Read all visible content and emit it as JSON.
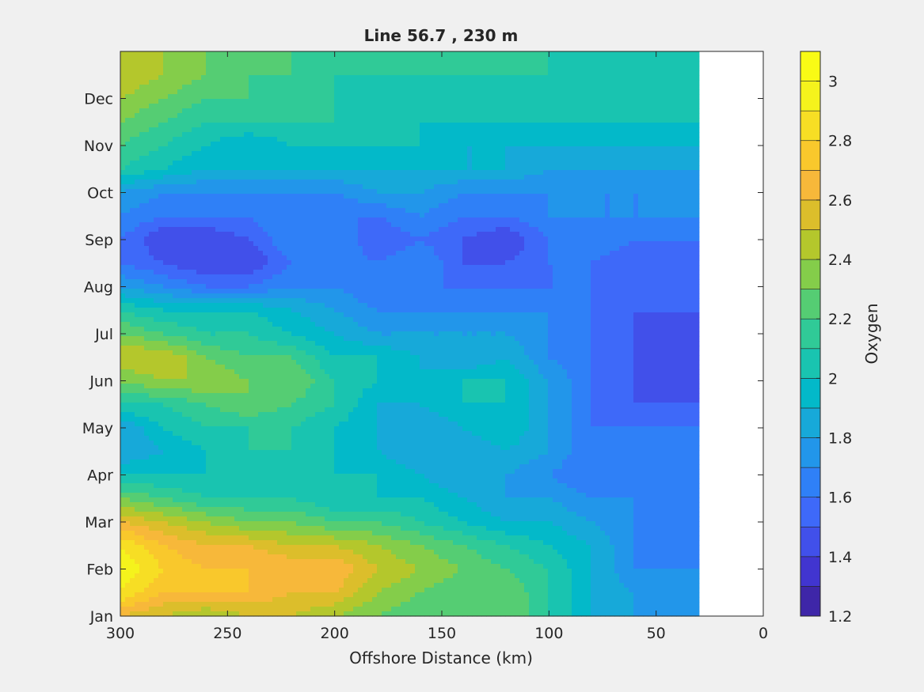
{
  "chart_data": {
    "type": "heatmap",
    "subtype": "filled-contour",
    "title": "Line 56.7 , 230 m",
    "xlabel": "Offshore Distance (km)",
    "ylabel": "",
    "colorbar_label": "Oxygen",
    "x_reversed": true,
    "xlim": [
      300,
      0
    ],
    "xticks": [
      300,
      250,
      200,
      150,
      100,
      50,
      0
    ],
    "ylim": [
      0,
      12
    ],
    "yticks": [
      0,
      1,
      2,
      3,
      4,
      5,
      6,
      7,
      8,
      9,
      10,
      11
    ],
    "ytick_labels": [
      "Jan",
      "Feb",
      "Mar",
      "Apr",
      "May",
      "Jun",
      "Jul",
      "Aug",
      "Sep",
      "Oct",
      "Nov",
      "Dec"
    ],
    "clim": [
      1.2,
      3.1
    ],
    "colorbar_ticks": [
      1.2,
      1.4,
      1.6,
      1.8,
      2,
      2.2,
      2.4,
      2.6,
      2.8,
      3
    ],
    "contour_levels": [
      1.2,
      1.3,
      1.4,
      1.5,
      1.6,
      1.7,
      1.8,
      1.9,
      2.0,
      2.1,
      2.2,
      2.3,
      2.4,
      2.5,
      2.6,
      2.7,
      2.8,
      2.9,
      3.0,
      3.1
    ],
    "level_colors": [
      "#3e26a8",
      "#4135d0",
      "#4150ea",
      "#3e69f9",
      "#2f80f7",
      "#2296ea",
      "#17a9d9",
      "#03b9c9",
      "#19c4b0",
      "#30ca97",
      "#55cd73",
      "#84cd4a",
      "#b4c72c",
      "#dcbe2b",
      "#f7b83a",
      "#f9c82c",
      "#f7de24",
      "#f5f31c",
      "#f9fb15"
    ],
    "grid": false,
    "data_x_range": [
      300,
      30
    ],
    "grid_x": [
      300,
      280,
      260,
      240,
      220,
      200,
      180,
      160,
      140,
      120,
      100,
      80,
      60,
      40,
      30
    ],
    "grid_y": [
      0,
      0.5,
      1,
      1.5,
      2,
      2.5,
      3,
      3.5,
      4,
      4.5,
      5,
      5.5,
      6,
      6.5,
      7,
      7.5,
      8,
      8.5,
      9,
      9.5,
      10,
      10.5,
      11,
      11.5,
      12
    ],
    "values": [
      [
        2.6,
        2.5,
        2.4,
        2.5,
        2.5,
        2.4,
        2.3,
        2.2,
        2.3,
        2.3,
        2.1,
        1.9,
        1.8,
        1.8,
        1.8
      ],
      [
        2.9,
        2.7,
        2.7,
        2.7,
        2.6,
        2.6,
        2.4,
        2.3,
        2.2,
        2.3,
        2.1,
        1.9,
        1.8,
        1.7,
        1.8
      ],
      [
        3.0,
        2.8,
        2.7,
        2.7,
        2.7,
        2.7,
        2.5,
        2.4,
        2.3,
        2.2,
        2.1,
        1.9,
        1.7,
        1.7,
        1.7
      ],
      [
        2.9,
        2.7,
        2.6,
        2.6,
        2.5,
        2.5,
        2.4,
        2.3,
        2.2,
        2.1,
        2.0,
        1.9,
        1.7,
        1.6,
        1.6
      ],
      [
        2.6,
        2.5,
        2.4,
        2.3,
        2.3,
        2.2,
        2.2,
        2.1,
        2.0,
        1.9,
        1.9,
        1.8,
        1.7,
        1.6,
        1.6
      ],
      [
        2.3,
        2.2,
        2.1,
        2.1,
        2.1,
        2.0,
        2.0,
        2.0,
        1.9,
        1.8,
        1.8,
        1.7,
        1.7,
        1.6,
        1.6
      ],
      [
        2.0,
        2.0,
        2.0,
        2.0,
        2.0,
        2.0,
        2.0,
        1.9,
        1.8,
        1.8,
        1.7,
        1.6,
        1.6,
        1.7,
        1.7
      ],
      [
        1.8,
        1.9,
        2.0,
        2.1,
        2.1,
        2.0,
        1.9,
        1.8,
        1.8,
        1.9,
        1.8,
        1.6,
        1.6,
        1.7,
        1.6
      ],
      [
        1.8,
        2.0,
        2.1,
        2.1,
        2.1,
        2.0,
        1.9,
        1.8,
        1.9,
        2.0,
        1.8,
        1.6,
        1.6,
        1.6,
        1.6
      ],
      [
        2.1,
        2.1,
        2.2,
        2.3,
        2.2,
        2.1,
        1.9,
        1.9,
        2.0,
        2.0,
        1.8,
        1.6,
        1.5,
        1.5,
        1.5
      ],
      [
        2.3,
        2.4,
        2.4,
        2.3,
        2.3,
        2.1,
        2.0,
        1.9,
        2.0,
        2.0,
        1.8,
        1.6,
        1.5,
        1.4,
        1.4
      ],
      [
        2.5,
        2.5,
        2.3,
        2.2,
        2.2,
        2.0,
        2.0,
        1.9,
        1.8,
        1.9,
        1.7,
        1.6,
        1.5,
        1.4,
        1.4
      ],
      [
        2.3,
        2.2,
        2.1,
        2.1,
        2.0,
        1.9,
        1.8,
        1.8,
        1.8,
        1.8,
        1.7,
        1.6,
        1.5,
        1.4,
        1.4
      ],
      [
        2.1,
        2.0,
        2.0,
        2.0,
        1.9,
        1.8,
        1.7,
        1.7,
        1.7,
        1.7,
        1.7,
        1.6,
        1.5,
        1.5,
        1.5
      ],
      [
        1.8,
        1.7,
        1.6,
        1.6,
        1.7,
        1.7,
        1.6,
        1.6,
        1.6,
        1.6,
        1.6,
        1.6,
        1.6,
        1.5,
        1.6
      ],
      [
        1.6,
        1.5,
        1.4,
        1.4,
        1.6,
        1.7,
        1.6,
        1.7,
        1.5,
        1.5,
        1.6,
        1.6,
        1.5,
        1.5,
        1.6
      ],
      [
        1.6,
        1.4,
        1.4,
        1.5,
        1.7,
        1.7,
        1.5,
        1.6,
        1.5,
        1.4,
        1.6,
        1.7,
        1.6,
        1.6,
        1.6
      ],
      [
        1.7,
        1.6,
        1.6,
        1.6,
        1.7,
        1.6,
        1.6,
        1.7,
        1.6,
        1.6,
        1.7,
        1.7,
        1.7,
        1.7,
        1.7
      ],
      [
        1.8,
        1.7,
        1.7,
        1.7,
        1.7,
        1.7,
        1.8,
        1.8,
        1.7,
        1.7,
        1.7,
        1.7,
        1.7,
        1.7,
        1.7
      ],
      [
        2.1,
        2.0,
        1.9,
        1.9,
        1.9,
        1.9,
        1.9,
        1.9,
        1.9,
        1.9,
        1.8,
        1.8,
        1.8,
        1.8,
        1.8
      ],
      [
        2.2,
        2.1,
        2.0,
        1.9,
        2.0,
        2.0,
        2.0,
        2.0,
        1.9,
        1.9,
        1.9,
        1.9,
        1.9,
        1.9,
        1.9
      ],
      [
        2.3,
        2.2,
        2.1,
        2.1,
        2.1,
        2.1,
        2.0,
        2.0,
        2.0,
        2.0,
        2.0,
        2.0,
        2.0,
        2.0,
        2.0
      ],
      [
        2.4,
        2.3,
        2.2,
        2.2,
        2.1,
        2.1,
        2.0,
        2.0,
        2.0,
        2.0,
        2.0,
        2.0,
        2.0,
        2.0,
        2.0
      ],
      [
        2.5,
        2.4,
        2.3,
        2.2,
        2.2,
        2.1,
        2.1,
        2.1,
        2.1,
        2.1,
        2.1,
        2.0,
        2.0,
        2.0,
        2.0
      ],
      [
        2.5,
        2.4,
        2.3,
        2.2,
        2.2,
        2.2,
        2.2,
        2.2,
        2.1,
        2.1,
        2.1,
        2.0,
        2.0,
        2.0,
        2.0
      ]
    ]
  }
}
